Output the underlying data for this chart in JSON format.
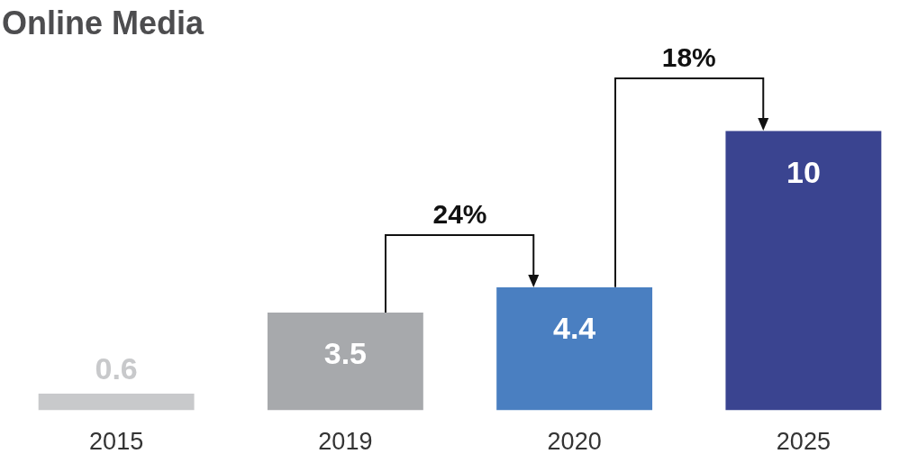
{
  "chart_data": {
    "type": "bar",
    "title": "Online Media",
    "categories": [
      "2015",
      "2019",
      "2020",
      "2025"
    ],
    "values": [
      0.6,
      3.5,
      4.4,
      10
    ],
    "colors": [
      "#c8c9cb",
      "#a7a9ac",
      "#4a7fc1",
      "#3a4490"
    ],
    "data_labels": true,
    "annotations": [
      "24%",
      "18%"
    ]
  }
}
